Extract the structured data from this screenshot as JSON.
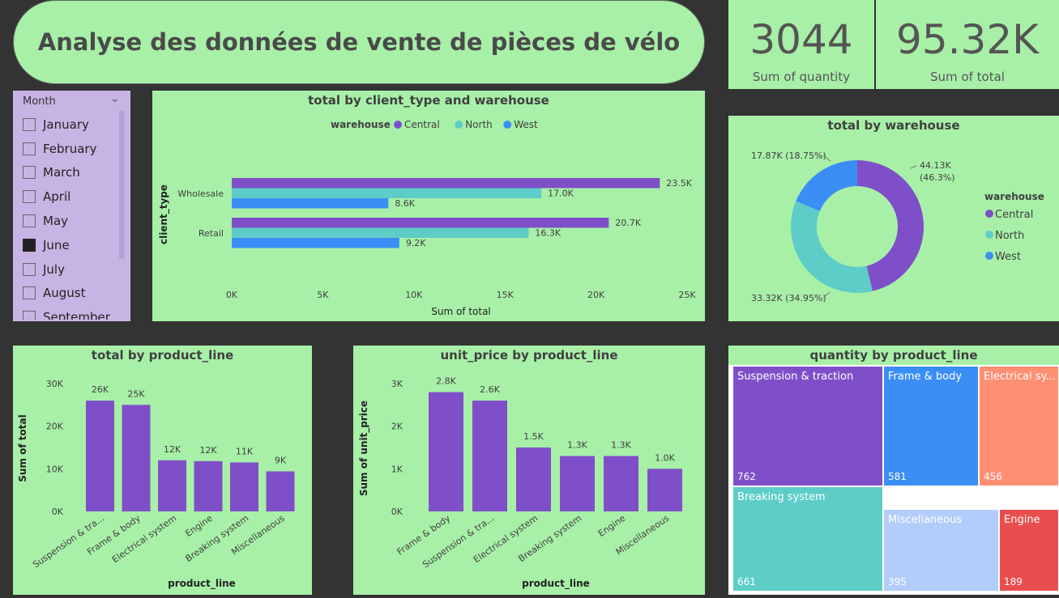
{
  "title": "Analyse des données de vente de pièces de vélo",
  "kpis": [
    {
      "value": "3044",
      "label": "Sum of quantity"
    },
    {
      "value": "95.32K",
      "label": "Sum of total"
    }
  ],
  "slicer": {
    "header": "Month",
    "items": [
      {
        "label": "January",
        "checked": false
      },
      {
        "label": "February",
        "checked": false
      },
      {
        "label": "March",
        "checked": false
      },
      {
        "label": "April",
        "checked": false
      },
      {
        "label": "May",
        "checked": false
      },
      {
        "label": "June",
        "checked": true
      },
      {
        "label": "July",
        "checked": false
      },
      {
        "label": "August",
        "checked": false
      },
      {
        "label": "September",
        "checked": false
      }
    ]
  },
  "colors": {
    "central": "#7f4fc9",
    "north": "#5ecdc8",
    "west": "#3a8ef6",
    "bar": "#7f4fc9"
  },
  "chart_data": [
    {
      "id": "client_bar",
      "type": "bar",
      "orientation": "horizontal",
      "title": "total by client_type and warehouse",
      "legend_title": "warehouse",
      "xlabel": "Sum of total",
      "ylabel": "client_type",
      "categories": [
        "Wholesale",
        "Retail"
      ],
      "series": [
        {
          "name": "Central",
          "values": [
            23500,
            20700
          ],
          "labels": [
            "23.5K",
            "20.7K"
          ]
        },
        {
          "name": "North",
          "values": [
            17000,
            16300
          ],
          "labels": [
            "17.0K",
            "16.3K"
          ]
        },
        {
          "name": "West",
          "values": [
            8600,
            9200
          ],
          "labels": [
            "8.6K",
            "9.2K"
          ]
        }
      ],
      "xlim": [
        0,
        25000
      ],
      "ticks": [
        "0K",
        "5K",
        "10K",
        "15K",
        "20K",
        "25K"
      ]
    },
    {
      "id": "warehouse_donut",
      "type": "pie",
      "title": "total by warehouse",
      "legend_title": "warehouse",
      "slices": [
        {
          "name": "Central",
          "value": 44130,
          "label1": "44.13K",
          "label2": "(46.3%)"
        },
        {
          "name": "North",
          "value": 33320,
          "label1": "33.32K (34.95%)",
          "label2": ""
        },
        {
          "name": "West",
          "value": 17870,
          "label1": "17.87K (18.75%)",
          "label2": ""
        }
      ]
    },
    {
      "id": "total_bar",
      "type": "bar",
      "title": "total by product_line",
      "xlabel": "product_line",
      "ylabel": "Sum of total",
      "categories": [
        "Suspension & tra...",
        "Frame & body",
        "Electrical system",
        "Engine",
        "Breaking system",
        "Miscellaneous"
      ],
      "values": [
        26000,
        25000,
        12000,
        11800,
        11500,
        9400
      ],
      "labels": [
        "26K",
        "25K",
        "12K",
        "12K",
        "11K",
        "9K"
      ],
      "ylim": [
        0,
        30000
      ],
      "ticks": [
        "0K",
        "10K",
        "20K",
        "30K"
      ]
    },
    {
      "id": "price_bar",
      "type": "bar",
      "title": "unit_price by product_line",
      "xlabel": "product_line",
      "ylabel": "Sum of unit_price",
      "categories": [
        "Frame & body",
        "Suspension & tra...",
        "Electrical system",
        "Breaking system",
        "Engine",
        "Miscellaneous"
      ],
      "values": [
        2800,
        2600,
        1500,
        1300,
        1300,
        1000
      ],
      "labels": [
        "2.8K",
        "2.6K",
        "1.5K",
        "1.3K",
        "1.3K",
        "1.0K"
      ],
      "ylim": [
        0,
        3000
      ],
      "ticks": [
        "0K",
        "1K",
        "2K",
        "3K"
      ]
    },
    {
      "id": "qty_treemap",
      "type": "treemap",
      "title": "quantity by product_line",
      "items": [
        {
          "name": "Suspension & traction",
          "value": 762,
          "color": "#7f4fc9"
        },
        {
          "name": "Breaking system",
          "value": 661,
          "color": "#5ecdc8"
        },
        {
          "name": "Frame & body",
          "value": 581,
          "color": "#3a8ef6"
        },
        {
          "name": "Electrical sy...",
          "value": 456,
          "color": "#ff8f73"
        },
        {
          "name": "Miscellaneous",
          "value": 395,
          "color": "#b3cdfa"
        },
        {
          "name": "Engine",
          "value": 189,
          "color": "#e94e4e"
        }
      ]
    }
  ]
}
